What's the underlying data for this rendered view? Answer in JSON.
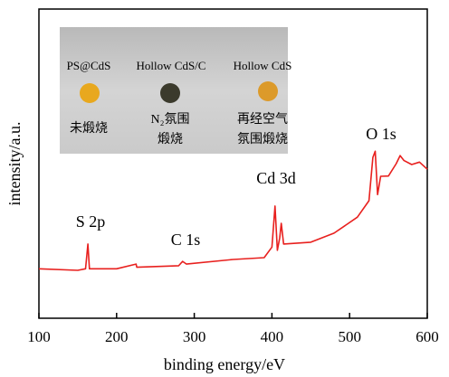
{
  "chart_data": {
    "type": "line",
    "xlabel": "binding energy/eV",
    "ylabel": "intensity/a.u.",
    "annotations": [
      "S 2p",
      "C 1s",
      "Cd 3d",
      "O 1s"
    ],
    "x": [
      100,
      150,
      160,
      163,
      165,
      200,
      225,
      226,
      280,
      285,
      290,
      350,
      390,
      400,
      404,
      407,
      410,
      412,
      415,
      450,
      480,
      510,
      525,
      530,
      533,
      536,
      540,
      550,
      560,
      565,
      570,
      580,
      590,
      600
    ],
    "values": [
      16,
      15.5,
      16,
      24,
      16,
      16,
      17.5,
      16.5,
      17,
      18.4,
      17.5,
      19,
      19.6,
      23,
      36.3,
      22,
      26,
      30.7,
      24,
      24.6,
      27.5,
      32.7,
      38,
      52,
      54,
      40,
      45.9,
      46,
      50,
      52.6,
      51,
      49.7,
      50.5,
      48.2
    ],
    "color": "#e8201e",
    "xlim": [
      100,
      600
    ],
    "xticks": [
      100,
      200,
      300,
      400,
      500,
      600
    ],
    "ylim": [
      0,
      100
    ]
  },
  "inset": {
    "samples": [
      {
        "name": "PS@CdS",
        "condition": [
          "未煅烧"
        ]
      },
      {
        "name": "Hollow CdS/C",
        "condition": [
          "N₂氛围",
          "煅烧"
        ]
      },
      {
        "name": "Hollow CdS",
        "condition": [
          "再经空气",
          "氛围煅烧"
        ]
      }
    ]
  }
}
